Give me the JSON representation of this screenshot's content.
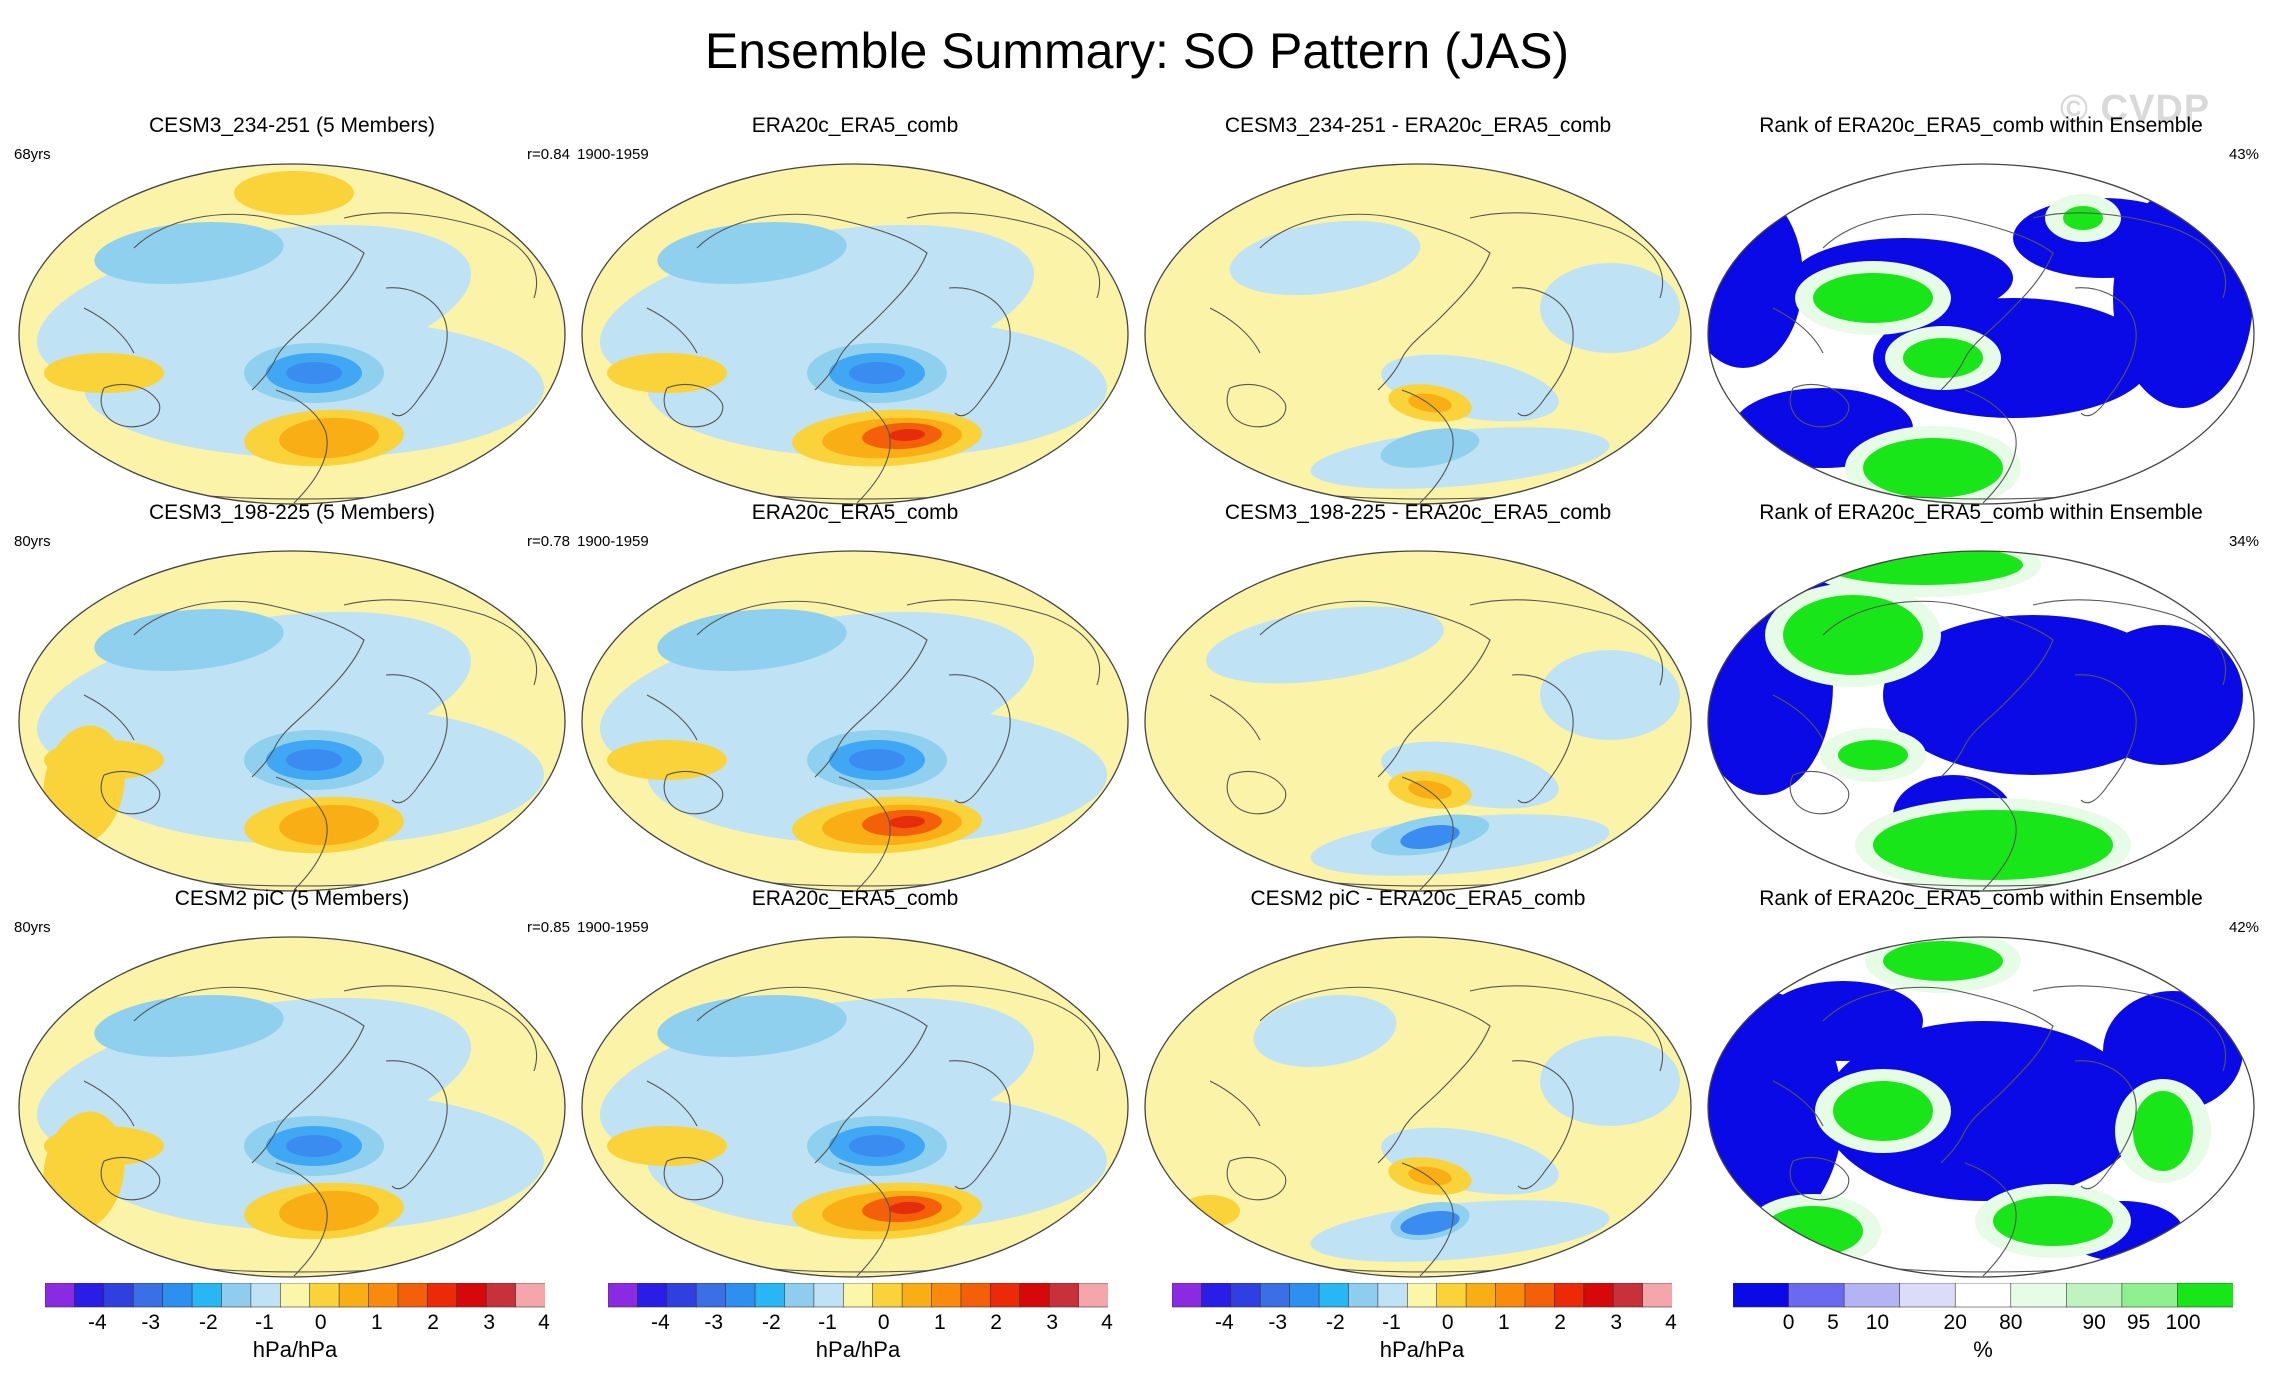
{
  "figure": {
    "title": "Ensemble Summary: SO Pattern (JAS)",
    "watermark": "© CVDP"
  },
  "chart_data": {
    "type": "heatmap",
    "title": "Ensemble Summary: SO Pattern (JAS)",
    "rows": [
      {
        "ensemble_panel": {
          "title": "CESM3_234-251 (5 Members)",
          "years": "68yrs",
          "pattern_corr": "r=0.84"
        },
        "obs_panel": {
          "title": "ERA20c_ERA5_comb",
          "period": "1900-1959"
        },
        "diff_panel": {
          "title": "CESM3_234-251 - ERA20c_ERA5_comb"
        },
        "rank_panel": {
          "title": "Rank of ERA20c_ERA5_comb within Ensemble",
          "percent": "43%"
        }
      },
      {
        "ensemble_panel": {
          "title": "CESM3_198-225 (5 Members)",
          "years": "80yrs",
          "pattern_corr": "r=0.78"
        },
        "obs_panel": {
          "title": "ERA20c_ERA5_comb",
          "period": "1900-1959"
        },
        "diff_panel": {
          "title": "CESM3_198-225 - ERA20c_ERA5_comb"
        },
        "rank_panel": {
          "title": "Rank of ERA20c_ERA5_comb within Ensemble",
          "percent": "34%"
        }
      },
      {
        "ensemble_panel": {
          "title": "CESM2 piC (5 Members)",
          "years": "80yrs",
          "pattern_corr": "r=0.85"
        },
        "obs_panel": {
          "title": "ERA20c_ERA5_comb",
          "period": "1900-1959"
        },
        "diff_panel": {
          "title": "CESM2 piC - ERA20c_ERA5_comb"
        },
        "rank_panel": {
          "title": "Rank of ERA20c_ERA5_comb within Ensemble",
          "percent": "42%"
        }
      }
    ],
    "pattern_colorbar": {
      "units": "hPa/hPa",
      "tick_labels": [
        "-4",
        "-3",
        "-2",
        "-1",
        "0",
        "1",
        "2",
        "3",
        "4"
      ],
      "colors": [
        "#8a2be2",
        "#2a1ee6",
        "#2f3fe0",
        "#3b6fe6",
        "#2d8ff0",
        "#28b6f5",
        "#8fcdef",
        "#bfe2f5",
        "#fbf6a8",
        "#fad23a",
        "#f9ae16",
        "#f98a0c",
        "#f4600a",
        "#ec2a08",
        "#d6080a",
        "#c8303a",
        "#f5a6aa"
      ]
    },
    "rank_colorbar": {
      "units": "%",
      "tick_labels": [
        "0",
        "5",
        "10",
        "20",
        "80",
        "90",
        "95",
        "100"
      ],
      "colors": [
        "#0a0ae6",
        "#6a6af0",
        "#b4b4f4",
        "#dcdcf8",
        "#ffffff",
        "#e6fce6",
        "#bff3bf",
        "#8ef08e",
        "#19e619"
      ]
    },
    "field_colors": {
      "neg3": "#3b8cf0",
      "neg2": "#3fa7f3",
      "neg1": "#8fd0ef",
      "neg0": "#bfe2f5",
      "pos0": "#fbf4a8",
      "pos1": "#fad23a",
      "pos2": "#f9ae16",
      "pos3": "#f4600a",
      "pos4": "#e52c0c",
      "rank_low": "#0a0ae6",
      "rank_mid": "#ffffff",
      "rank_high": "#19e619",
      "rank_high_light": "#e6fce6",
      "coast": "#555555",
      "border": "#555555"
    }
  }
}
